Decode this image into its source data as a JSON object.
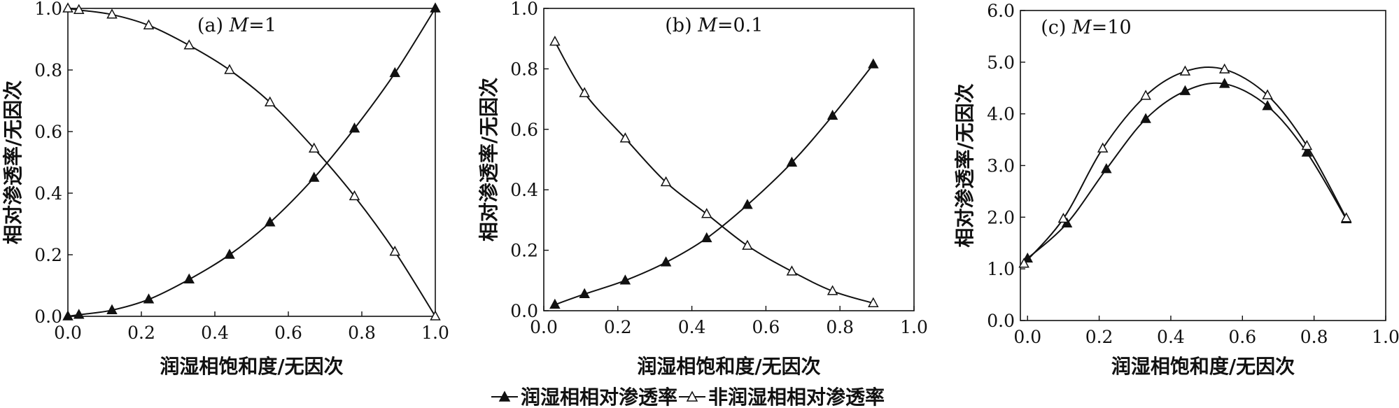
{
  "legend": {
    "wetting_label": "润湿相相对渗透率",
    "nonwetting_label": "非润湿相相对渗透率"
  },
  "chart_data": [
    {
      "type": "line",
      "title_prefix": "(a) ",
      "title_var": "M",
      "title_suffix": "=1",
      "xlabel": "润湿相饱和度/无因次",
      "ylabel": "相对渗透率/无因次",
      "xlim": [
        0,
        1.0
      ],
      "ylim": [
        0,
        1.0
      ],
      "xticks": [
        "0.0",
        "0.2",
        "0.4",
        "0.6",
        "0.8",
        "1.0"
      ],
      "yticks": [
        "0.0",
        "0.2",
        "0.4",
        "0.6",
        "0.8",
        "1.0"
      ],
      "series": [
        {
          "name": "润湿相相对渗透率",
          "marker": "filled-triangle",
          "x": [
            0.0,
            0.03,
            0.12,
            0.22,
            0.33,
            0.44,
            0.55,
            0.67,
            0.78,
            0.89,
            1.0
          ],
          "y": [
            0.0,
            0.005,
            0.02,
            0.055,
            0.12,
            0.2,
            0.305,
            0.45,
            0.61,
            0.79,
            1.0
          ]
        },
        {
          "name": "非润湿相相对渗透率",
          "marker": "open-triangle",
          "x": [
            0.0,
            0.03,
            0.12,
            0.22,
            0.33,
            0.44,
            0.55,
            0.67,
            0.78,
            0.89,
            1.0
          ],
          "y": [
            1.0,
            0.995,
            0.98,
            0.945,
            0.88,
            0.8,
            0.695,
            0.545,
            0.39,
            0.21,
            0.0
          ]
        }
      ]
    },
    {
      "type": "line",
      "title_prefix": "(b) ",
      "title_var": "M",
      "title_suffix": "=0.1",
      "xlabel": "润湿相饱和度/无因次",
      "ylabel": "相对渗透率/无因次",
      "xlim": [
        0,
        1.0
      ],
      "ylim": [
        0,
        1.0
      ],
      "xticks": [
        "0.0",
        "0.2",
        "0.4",
        "0.6",
        "0.8",
        "1.0"
      ],
      "yticks": [
        "0.0",
        "0.2",
        "0.4",
        "0.6",
        "0.8",
        "1.0"
      ],
      "series": [
        {
          "name": "润湿相相对渗透率",
          "marker": "filled-triangle",
          "x": [
            0.03,
            0.11,
            0.22,
            0.33,
            0.44,
            0.55,
            0.67,
            0.78,
            0.89
          ],
          "y": [
            0.02,
            0.055,
            0.1,
            0.16,
            0.24,
            0.35,
            0.49,
            0.645,
            0.815
          ]
        },
        {
          "name": "非润湿相相对渗透率",
          "marker": "open-triangle",
          "x": [
            0.03,
            0.11,
            0.22,
            0.33,
            0.44,
            0.55,
            0.67,
            0.78,
            0.89
          ],
          "y": [
            0.89,
            0.72,
            0.57,
            0.425,
            0.32,
            0.215,
            0.13,
            0.065,
            0.025
          ]
        }
      ]
    },
    {
      "type": "line",
      "title_prefix": "(c) ",
      "title_var": "M",
      "title_suffix": "=10",
      "xlabel": "润湿相饱和度/无因次",
      "ylabel": "相对渗透率/无因次",
      "xlim": [
        -0.02,
        1.0
      ],
      "ylim": [
        0,
        6.0
      ],
      "xticks": [
        "0.0",
        "0.2",
        "0.4",
        "0.6",
        "0.8",
        "1.0"
      ],
      "yticks": [
        "0.0",
        "1.0",
        "2.0",
        "3.0",
        "4.0",
        "5.0",
        "6.0"
      ],
      "series": [
        {
          "name": "润湿相相对渗透率",
          "marker": "filled-triangle",
          "x": [
            0.0,
            0.11,
            0.22,
            0.33,
            0.44,
            0.55,
            0.67,
            0.78,
            0.89
          ],
          "y": [
            1.2,
            1.88,
            2.93,
            3.9,
            4.44,
            4.58,
            4.15,
            3.25,
            1.96
          ]
        },
        {
          "name": "非润湿相相对渗透率",
          "marker": "open-triangle",
          "x": [
            -0.01,
            0.1,
            0.21,
            0.33,
            0.44,
            0.55,
            0.67,
            0.78,
            0.89
          ],
          "y": [
            1.1,
            1.97,
            3.33,
            4.35,
            4.82,
            4.86,
            4.36,
            3.38,
            1.98
          ]
        }
      ]
    }
  ]
}
